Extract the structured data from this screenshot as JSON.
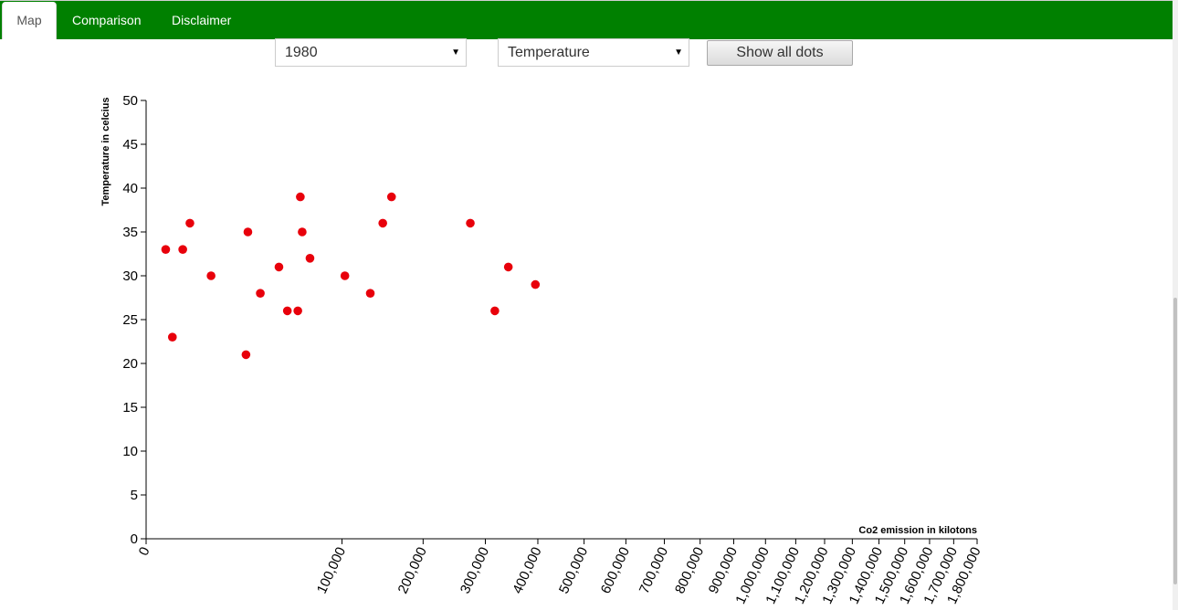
{
  "nav": {
    "tabs": [
      {
        "label": "Map",
        "active": true
      },
      {
        "label": "Comparison",
        "active": false
      },
      {
        "label": "Disclaimer",
        "active": false
      }
    ]
  },
  "controls": {
    "year_select": {
      "value": "1980"
    },
    "metric_select": {
      "value": "Temperature"
    },
    "show_all_button": "Show all dots"
  },
  "colors": {
    "nav_bg": "#008000",
    "dot": "#e8000b"
  },
  "chart_data": {
    "type": "scatter",
    "xlabel": "Co2 emission in kilotons",
    "ylabel": "Temperature in celcius",
    "x_scale": "sqrt",
    "xlim": [
      0,
      1800000
    ],
    "ylim": [
      0,
      50
    ],
    "x_ticks": [
      0,
      100000,
      200000,
      300000,
      400000,
      500000,
      600000,
      700000,
      800000,
      900000,
      1000000,
      1100000,
      1200000,
      1300000,
      1400000,
      1500000,
      1600000,
      1700000,
      1800000
    ],
    "x_tick_labels": [
      "0",
      "100,000",
      "200,000",
      "300,000",
      "400,000",
      "500,000",
      "600,000",
      "700,000",
      "800,000",
      "900,000",
      "1,000,000",
      "1,100,000",
      "1,200,000",
      "1,300,000",
      "1,400,000",
      "1,500,000",
      "1,600,000",
      "1,700,000",
      "1,800,000"
    ],
    "y_ticks": [
      0,
      5,
      10,
      15,
      20,
      25,
      30,
      35,
      40,
      45,
      50
    ],
    "y_tick_labels": [
      "0",
      "5",
      "10",
      "15",
      "20",
      "25",
      "30",
      "35",
      "40",
      "45",
      "50"
    ],
    "grid": false,
    "points": [
      {
        "x": 1000,
        "y": 33
      },
      {
        "x": 1800,
        "y": 23
      },
      {
        "x": 3500,
        "y": 33
      },
      {
        "x": 5000,
        "y": 36
      },
      {
        "x": 11000,
        "y": 30
      },
      {
        "x": 26000,
        "y": 21
      },
      {
        "x": 27000,
        "y": 35
      },
      {
        "x": 34000,
        "y": 28
      },
      {
        "x": 46000,
        "y": 31
      },
      {
        "x": 52000,
        "y": 26
      },
      {
        "x": 60000,
        "y": 26
      },
      {
        "x": 62000,
        "y": 39
      },
      {
        "x": 63500,
        "y": 35
      },
      {
        "x": 70000,
        "y": 32
      },
      {
        "x": 103000,
        "y": 30
      },
      {
        "x": 131000,
        "y": 28
      },
      {
        "x": 146000,
        "y": 36
      },
      {
        "x": 157000,
        "y": 39
      },
      {
        "x": 274000,
        "y": 36
      },
      {
        "x": 317000,
        "y": 26
      },
      {
        "x": 342000,
        "y": 31
      },
      {
        "x": 395000,
        "y": 29
      }
    ]
  }
}
